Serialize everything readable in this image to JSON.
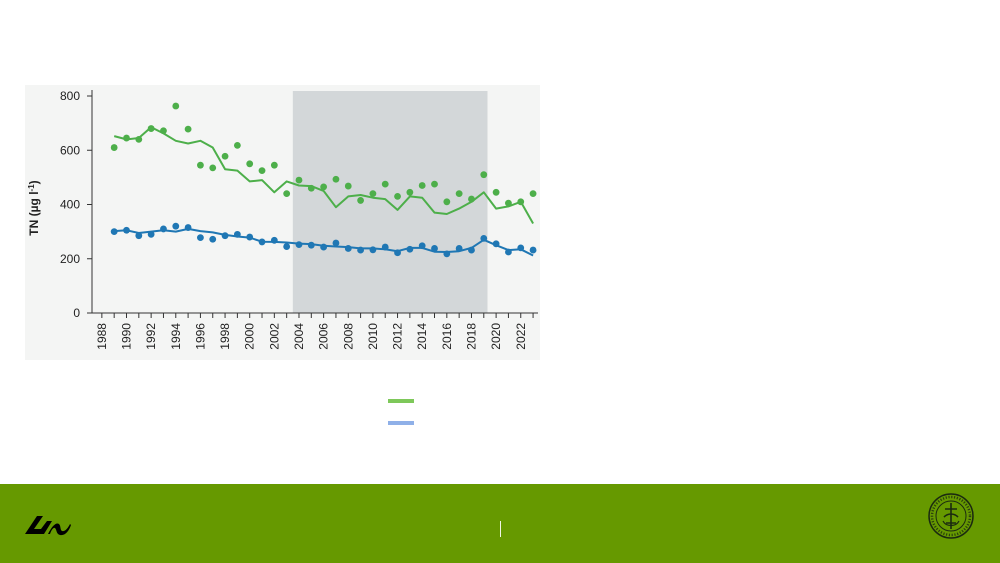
{
  "chart_data": {
    "type": "line",
    "ylabel_main": "TN (µg l",
    "ylabel_sup": "-1",
    "ylabel_close": ")",
    "ylim": [
      0,
      800
    ],
    "yticks": [
      0,
      200,
      400,
      600,
      800
    ],
    "xlim": [
      1988,
      2023
    ],
    "xticks": [
      1988,
      1990,
      1992,
      1994,
      1996,
      1998,
      2000,
      2002,
      2004,
      2006,
      2008,
      2010,
      2012,
      2014,
      2016,
      2018,
      2020,
      2022
    ],
    "shaded_period": [
      2003.5,
      2019.3
    ],
    "grid": false,
    "series": [
      {
        "color": "#4daf4a",
        "points_x": [
          1989,
          1990,
          1991,
          1992,
          1993,
          1994,
          1995,
          1996,
          1997,
          1998,
          1999,
          2000,
          2001,
          2002,
          2003,
          2004,
          2005,
          2006,
          2007,
          2008,
          2009,
          2010,
          2011,
          2012,
          2013,
          2014,
          2015,
          2016,
          2017,
          2018,
          2019,
          2020,
          2021,
          2022,
          2023
        ],
        "points_y": [
          610,
          645,
          640,
          680,
          672,
          763,
          678,
          545,
          535,
          578,
          618,
          550,
          525,
          545,
          440,
          490,
          460,
          465,
          493,
          468,
          415,
          440,
          475,
          430,
          445,
          470,
          475,
          410,
          440,
          420,
          510,
          445,
          405,
          410,
          440
        ],
        "line_x": [
          1989,
          1990,
          1991,
          1992,
          1993,
          1994,
          1995,
          1996,
          1997,
          1998,
          1999,
          2000,
          2001,
          2002,
          2003,
          2004,
          2005,
          2006,
          2007,
          2008,
          2009,
          2010,
          2011,
          2012,
          2013,
          2014,
          2015,
          2016,
          2017,
          2018,
          2019,
          2020,
          2021,
          2022,
          2023
        ],
        "line_y": [
          652,
          640,
          645,
          685,
          662,
          635,
          625,
          635,
          610,
          530,
          525,
          485,
          490,
          445,
          485,
          470,
          468,
          450,
          390,
          430,
          435,
          425,
          420,
          380,
          430,
          425,
          370,
          365,
          385,
          410,
          445,
          385,
          393,
          410,
          330
        ]
      },
      {
        "color": "#1f77b4",
        "points_x": [
          1989,
          1990,
          1991,
          1992,
          1993,
          1994,
          1995,
          1996,
          1997,
          1998,
          1999,
          2000,
          2001,
          2002,
          2003,
          2004,
          2005,
          2006,
          2007,
          2008,
          2009,
          2010,
          2011,
          2012,
          2013,
          2014,
          2015,
          2016,
          2017,
          2018,
          2019,
          2020,
          2021,
          2022,
          2023
        ],
        "points_y": [
          300,
          305,
          285,
          290,
          310,
          320,
          315,
          278,
          272,
          285,
          290,
          280,
          262,
          268,
          245,
          252,
          250,
          243,
          258,
          238,
          232,
          233,
          243,
          222,
          235,
          248,
          238,
          218,
          238,
          232,
          275,
          255,
          225,
          240,
          232
        ],
        "line_x": [
          1989,
          1990,
          1991,
          1992,
          1993,
          1994,
          1995,
          1996,
          1997,
          1998,
          1999,
          2000,
          2001,
          2002,
          2003,
          2004,
          2005,
          2006,
          2007,
          2008,
          2009,
          2010,
          2011,
          2012,
          2013,
          2014,
          2015,
          2016,
          2017,
          2018,
          2019,
          2020,
          2021,
          2022,
          2023
        ],
        "line_y": [
          302,
          305,
          295,
          300,
          305,
          300,
          310,
          302,
          297,
          288,
          282,
          278,
          263,
          262,
          260,
          256,
          254,
          248,
          245,
          243,
          238,
          238,
          235,
          228,
          240,
          240,
          226,
          225,
          228,
          240,
          270,
          250,
          232,
          235,
          212
        ]
      }
    ]
  },
  "legend": {
    "swatch_1_color": "#7ec85a",
    "swatch_2_color": "#8fb0e8"
  },
  "footer": {
    "background": "#669900"
  }
}
